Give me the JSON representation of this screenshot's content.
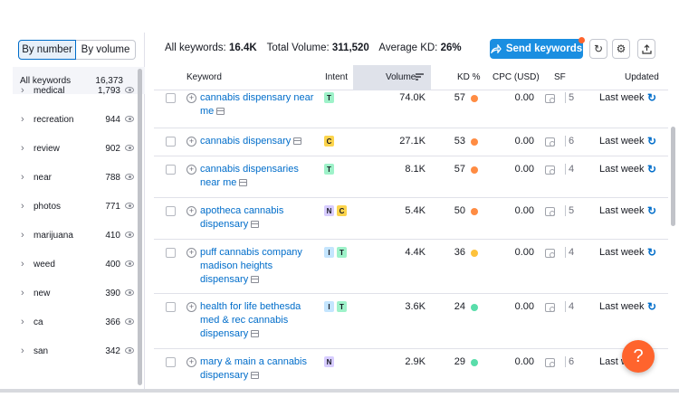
{
  "left_panel": {
    "toggle": {
      "by_number": "By number",
      "by_volume": "By volume",
      "active": "by_number"
    },
    "all_keywords": {
      "label": "All keywords",
      "count": "16,373"
    },
    "groups": [
      {
        "name": "medical",
        "count": "1,793"
      },
      {
        "name": "recreation",
        "count": "944"
      },
      {
        "name": "review",
        "count": "902"
      },
      {
        "name": "near",
        "count": "788"
      },
      {
        "name": "photos",
        "count": "771"
      },
      {
        "name": "marijuana",
        "count": "410"
      },
      {
        "name": "weed",
        "count": "400"
      },
      {
        "name": "new",
        "count": "390"
      },
      {
        "name": "ca",
        "count": "366"
      },
      {
        "name": "san",
        "count": "342"
      }
    ]
  },
  "summary": {
    "all_keywords_label": "All keywords:",
    "all_keywords_value": "16.4K",
    "total_volume_label": "Total Volume:",
    "total_volume_value": "311,520",
    "avg_kd_label": "Average KD:",
    "avg_kd_value": "26%"
  },
  "toolbar": {
    "send_keywords": "Send keywords",
    "accent": "#1a8ee1"
  },
  "table": {
    "headers": {
      "keyword": "Keyword",
      "intent": "Intent",
      "volume": "Volume",
      "kd": "KD %",
      "cpc": "CPC (USD)",
      "sf": "SF",
      "updated": "Updated"
    },
    "rows": [
      {
        "keyword": "cannabis dispensary near me",
        "intents": [
          "T"
        ],
        "volume": "74.0K",
        "kd": "57",
        "kd_color": "#ff8c43",
        "cpc": "0.00",
        "sf": "5",
        "updated": "Last week"
      },
      {
        "keyword": "cannabis dispensary",
        "intents": [
          "C"
        ],
        "volume": "27.1K",
        "kd": "53",
        "kd_color": "#ff8c43",
        "cpc": "0.00",
        "sf": "6",
        "updated": "Last week"
      },
      {
        "keyword": "cannabis dispensaries near me",
        "intents": [
          "T"
        ],
        "volume": "8.1K",
        "kd": "57",
        "kd_color": "#ff8c43",
        "cpc": "0.00",
        "sf": "4",
        "updated": "Last week"
      },
      {
        "keyword": "apotheca cannabis dispensary",
        "intents": [
          "N",
          "C"
        ],
        "volume": "5.4K",
        "kd": "50",
        "kd_color": "#ff8c43",
        "cpc": "0.00",
        "sf": "5",
        "updated": "Last week"
      },
      {
        "keyword": "puff cannabis company madison heights dispensary",
        "intents": [
          "I",
          "T"
        ],
        "volume": "4.4K",
        "kd": "36",
        "kd_color": "#fdc23c",
        "cpc": "0.00",
        "sf": "4",
        "updated": "Last week"
      },
      {
        "keyword": "health for life bethesda med & rec cannabis dispensary",
        "intents": [
          "I",
          "T"
        ],
        "volume": "3.6K",
        "kd": "24",
        "kd_color": "#59ddaa",
        "cpc": "0.00",
        "sf": "4",
        "updated": "Last week"
      },
      {
        "keyword": "mary & main a cannabis dispensary",
        "intents": [
          "N"
        ],
        "volume": "2.9K",
        "kd": "29",
        "kd_color": "#59ddaa",
        "cpc": "0.00",
        "sf": "6",
        "updated": "Last w"
      }
    ]
  },
  "help": {
    "label": "?"
  }
}
